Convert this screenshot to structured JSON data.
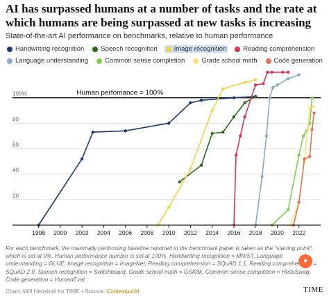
{
  "title": "AI has surpassed humans at a number of tasks and the rate at which humans are being surpassed at new tasks is increasing",
  "subtitle": "State-of-the-art AI performance on benchmarks, relative to human performance",
  "note": "For each benchmark, the maximally performing baseline reported in the benchmark paper is taken as the \"starting point\", which is set at 0%. Human performance number is set at 100%. Handwriting recognition = MNIST, Language understanding = GLUE, Image recognition = ImageNet, Reading comprehension = SQuAD 1.1, Reading comprehension = SQuAD 2.0, Speech recognition = Switchboard, Grade school math = GSK8k, Common sense completion = HellaSwag, Code generation = HumanEval.",
  "credit_prefix": "Chart: Will Henshall for TIME • Source: ",
  "credit_source": "ContextualAI",
  "logo": "TIME",
  "chart_data": {
    "type": "line",
    "title": "AI has surpassed humans at a number of tasks and the rate at which humans are being surpassed at new tasks is increasing",
    "subtitle": "State-of-the-art AI performance on benchmarks, relative to human performance",
    "xlim": [
      1997,
      2024
    ],
    "ylim": [
      0,
      120
    ],
    "x_ticks": [
      1998,
      2000,
      2002,
      2004,
      2006,
      2008,
      2010,
      2012,
      2014,
      2016,
      2018,
      2020,
      2022
    ],
    "y_ticks": [
      {
        "value": 20,
        "label": "20"
      },
      {
        "value": 40,
        "label": "40"
      },
      {
        "value": 60,
        "label": "60"
      },
      {
        "value": 80,
        "label": "80"
      },
      {
        "value": 100,
        "label": "100%"
      }
    ],
    "reference_line": {
      "value": 100,
      "label": "Human perfomance = 100%"
    },
    "series": [
      {
        "name": "Handwriting recognition",
        "color": "#1f3a68",
        "highlight": false,
        "points": [
          [
            1998,
            0
          ],
          [
            2002,
            52
          ],
          [
            2003,
            73
          ],
          [
            2006,
            74
          ],
          [
            2010,
            80
          ],
          [
            2012,
            96
          ],
          [
            2013,
            98
          ],
          [
            2016,
            100
          ],
          [
            2018,
            101
          ]
        ]
      },
      {
        "name": "Speech recognition",
        "color": "#2d6a1f",
        "highlight": false,
        "points": [
          [
            2011,
            34
          ],
          [
            2013,
            47
          ],
          [
            2014,
            72
          ],
          [
            2015,
            73
          ],
          [
            2016,
            85
          ],
          [
            2017,
            96
          ],
          [
            2018,
            101
          ]
        ]
      },
      {
        "name": "Image recognition",
        "color": "#f2d24a",
        "highlight": true,
        "points": [
          [
            2009,
            0
          ],
          [
            2010,
            14
          ],
          [
            2012,
            44
          ],
          [
            2014,
            90
          ],
          [
            2015,
            107
          ],
          [
            2017,
            112
          ],
          [
            2018,
            114
          ]
        ]
      },
      {
        "name": "Reading comprehension",
        "color": "#d6335f",
        "highlight": false,
        "points": [
          [
            2016,
            0
          ],
          [
            2016.2,
            55
          ],
          [
            2016.6,
            70
          ],
          [
            2017,
            85
          ],
          [
            2018,
            110
          ],
          [
            2018.7,
            111
          ],
          [
            2019.1,
            120
          ],
          [
            2019.5,
            120
          ],
          [
            2020.5,
            120
          ],
          [
            2021,
            120
          ]
        ]
      },
      {
        "name": "Language understanding",
        "color": "#8aa9c7",
        "highlight": false,
        "points": [
          [
            2018,
            0
          ],
          [
            2018.6,
            38
          ],
          [
            2019,
            70
          ],
          [
            2019.3,
            100
          ],
          [
            2019.6,
            108
          ],
          [
            2020,
            110
          ],
          [
            2021,
            115
          ],
          [
            2022,
            118
          ]
        ]
      },
      {
        "name": "Common sense completion",
        "color": "#7fcf50",
        "highlight": false,
        "points": [
          [
            2019.5,
            0
          ],
          [
            2021,
            12
          ],
          [
            2022,
            55
          ],
          [
            2022.4,
            70
          ],
          [
            2022.7,
            74
          ],
          [
            2023,
            80
          ],
          [
            2023.2,
            100
          ]
        ]
      },
      {
        "name": "Grade school math",
        "color": "#f4e27a",
        "highlight": false,
        "points": [
          [
            2021.2,
            0
          ],
          [
            2022,
            18
          ],
          [
            2022.5,
            50
          ],
          [
            2022.8,
            75
          ],
          [
            2023,
            92
          ],
          [
            2023.3,
            93
          ]
        ]
      },
      {
        "name": "Code generation",
        "color": "#e0735a",
        "highlight": false,
        "points": [
          [
            2021.5,
            0
          ],
          [
            2022,
            18
          ],
          [
            2022.5,
            52
          ],
          [
            2023,
            54
          ],
          [
            2023.2,
            75
          ],
          [
            2023.4,
            88
          ]
        ]
      }
    ]
  }
}
